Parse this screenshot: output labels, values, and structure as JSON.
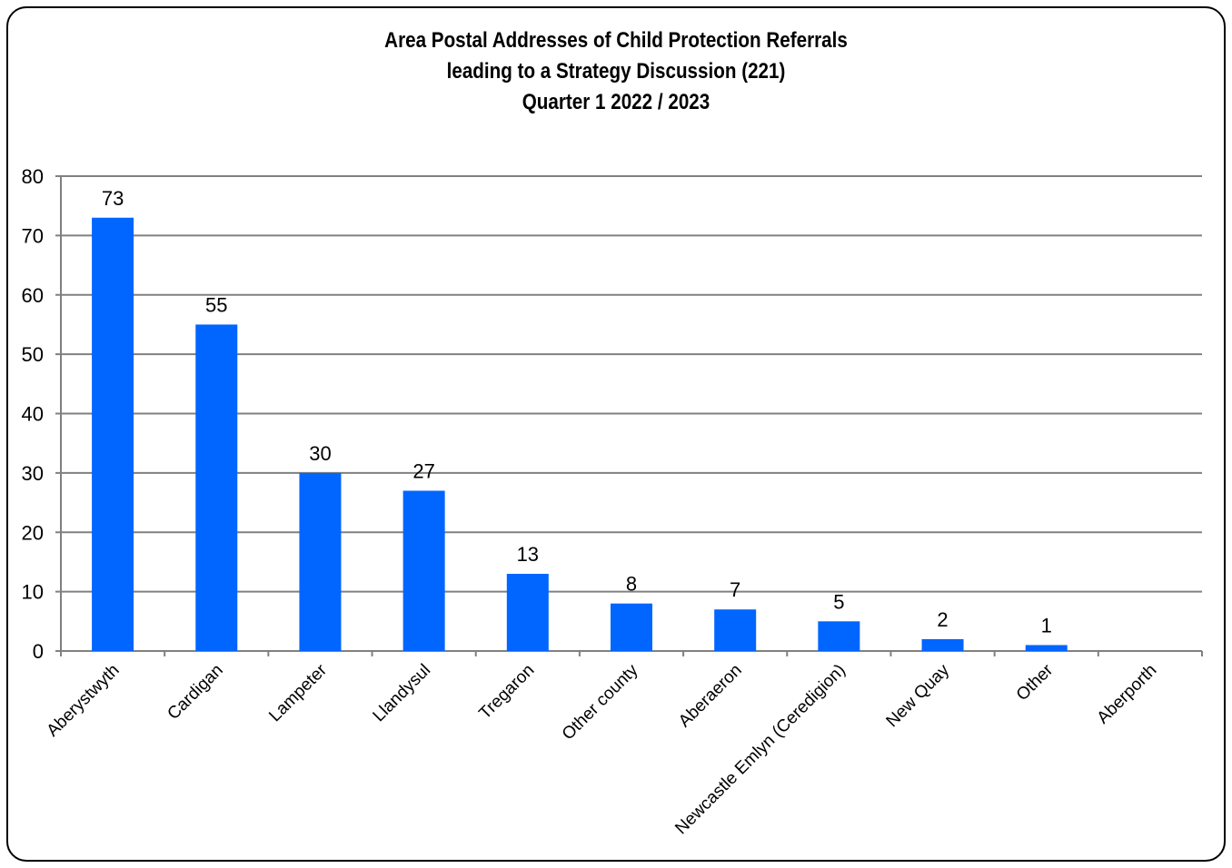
{
  "chart_data": {
    "type": "bar",
    "title_lines": [
      "Area Postal Addresses of Child Protection Referrals",
      "leading to a Strategy Discussion (221)",
      "Quarter 1 2022 / 2023"
    ],
    "categories": [
      "Aberystwyth",
      "Cardigan",
      "Lampeter",
      "Llandysul",
      "Tregaron",
      "Other county",
      "Aberaeron",
      "Newcastle Emlyn (Ceredigion)",
      "New Quay",
      "Other",
      "Aberporth"
    ],
    "values": [
      73,
      55,
      30,
      27,
      13,
      8,
      7,
      5,
      2,
      1,
      0
    ],
    "data_labels": [
      "73",
      "55",
      "30",
      "27",
      "13",
      "8",
      "7",
      "5",
      "2",
      "1",
      ""
    ],
    "ylim": [
      0,
      80
    ],
    "yticks": [
      0,
      10,
      20,
      30,
      40,
      50,
      60,
      70,
      80
    ],
    "grid": true,
    "legend": "none",
    "bar_color": "#0066FF",
    "gridline_color": "#808080"
  }
}
